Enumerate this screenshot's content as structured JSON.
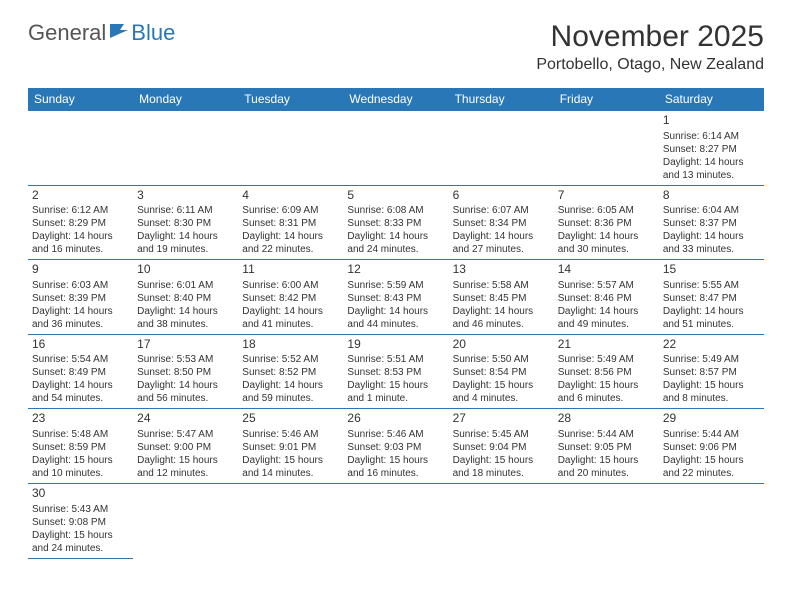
{
  "logo": {
    "general": "General",
    "blue": "Blue"
  },
  "title": "November 2025",
  "location": "Portobello, Otago, New Zealand",
  "colors": {
    "header_bg": "#2a77b8",
    "header_text": "#ffffff",
    "border": "#2a77b8",
    "text": "#333333",
    "logo_gray": "#555555",
    "logo_blue": "#2a77b8"
  },
  "day_headers": [
    "Sunday",
    "Monday",
    "Tuesday",
    "Wednesday",
    "Thursday",
    "Friday",
    "Saturday"
  ],
  "weeks": [
    [
      null,
      null,
      null,
      null,
      null,
      null,
      {
        "n": "1",
        "sr": "Sunrise: 6:14 AM",
        "ss": "Sunset: 8:27 PM",
        "d1": "Daylight: 14 hours",
        "d2": "and 13 minutes."
      }
    ],
    [
      {
        "n": "2",
        "sr": "Sunrise: 6:12 AM",
        "ss": "Sunset: 8:29 PM",
        "d1": "Daylight: 14 hours",
        "d2": "and 16 minutes."
      },
      {
        "n": "3",
        "sr": "Sunrise: 6:11 AM",
        "ss": "Sunset: 8:30 PM",
        "d1": "Daylight: 14 hours",
        "d2": "and 19 minutes."
      },
      {
        "n": "4",
        "sr": "Sunrise: 6:09 AM",
        "ss": "Sunset: 8:31 PM",
        "d1": "Daylight: 14 hours",
        "d2": "and 22 minutes."
      },
      {
        "n": "5",
        "sr": "Sunrise: 6:08 AM",
        "ss": "Sunset: 8:33 PM",
        "d1": "Daylight: 14 hours",
        "d2": "and 24 minutes."
      },
      {
        "n": "6",
        "sr": "Sunrise: 6:07 AM",
        "ss": "Sunset: 8:34 PM",
        "d1": "Daylight: 14 hours",
        "d2": "and 27 minutes."
      },
      {
        "n": "7",
        "sr": "Sunrise: 6:05 AM",
        "ss": "Sunset: 8:36 PM",
        "d1": "Daylight: 14 hours",
        "d2": "and 30 minutes."
      },
      {
        "n": "8",
        "sr": "Sunrise: 6:04 AM",
        "ss": "Sunset: 8:37 PM",
        "d1": "Daylight: 14 hours",
        "d2": "and 33 minutes."
      }
    ],
    [
      {
        "n": "9",
        "sr": "Sunrise: 6:03 AM",
        "ss": "Sunset: 8:39 PM",
        "d1": "Daylight: 14 hours",
        "d2": "and 36 minutes."
      },
      {
        "n": "10",
        "sr": "Sunrise: 6:01 AM",
        "ss": "Sunset: 8:40 PM",
        "d1": "Daylight: 14 hours",
        "d2": "and 38 minutes."
      },
      {
        "n": "11",
        "sr": "Sunrise: 6:00 AM",
        "ss": "Sunset: 8:42 PM",
        "d1": "Daylight: 14 hours",
        "d2": "and 41 minutes."
      },
      {
        "n": "12",
        "sr": "Sunrise: 5:59 AM",
        "ss": "Sunset: 8:43 PM",
        "d1": "Daylight: 14 hours",
        "d2": "and 44 minutes."
      },
      {
        "n": "13",
        "sr": "Sunrise: 5:58 AM",
        "ss": "Sunset: 8:45 PM",
        "d1": "Daylight: 14 hours",
        "d2": "and 46 minutes."
      },
      {
        "n": "14",
        "sr": "Sunrise: 5:57 AM",
        "ss": "Sunset: 8:46 PM",
        "d1": "Daylight: 14 hours",
        "d2": "and 49 minutes."
      },
      {
        "n": "15",
        "sr": "Sunrise: 5:55 AM",
        "ss": "Sunset: 8:47 PM",
        "d1": "Daylight: 14 hours",
        "d2": "and 51 minutes."
      }
    ],
    [
      {
        "n": "16",
        "sr": "Sunrise: 5:54 AM",
        "ss": "Sunset: 8:49 PM",
        "d1": "Daylight: 14 hours",
        "d2": "and 54 minutes."
      },
      {
        "n": "17",
        "sr": "Sunrise: 5:53 AM",
        "ss": "Sunset: 8:50 PM",
        "d1": "Daylight: 14 hours",
        "d2": "and 56 minutes."
      },
      {
        "n": "18",
        "sr": "Sunrise: 5:52 AM",
        "ss": "Sunset: 8:52 PM",
        "d1": "Daylight: 14 hours",
        "d2": "and 59 minutes."
      },
      {
        "n": "19",
        "sr": "Sunrise: 5:51 AM",
        "ss": "Sunset: 8:53 PM",
        "d1": "Daylight: 15 hours",
        "d2": "and 1 minute."
      },
      {
        "n": "20",
        "sr": "Sunrise: 5:50 AM",
        "ss": "Sunset: 8:54 PM",
        "d1": "Daylight: 15 hours",
        "d2": "and 4 minutes."
      },
      {
        "n": "21",
        "sr": "Sunrise: 5:49 AM",
        "ss": "Sunset: 8:56 PM",
        "d1": "Daylight: 15 hours",
        "d2": "and 6 minutes."
      },
      {
        "n": "22",
        "sr": "Sunrise: 5:49 AM",
        "ss": "Sunset: 8:57 PM",
        "d1": "Daylight: 15 hours",
        "d2": "and 8 minutes."
      }
    ],
    [
      {
        "n": "23",
        "sr": "Sunrise: 5:48 AM",
        "ss": "Sunset: 8:59 PM",
        "d1": "Daylight: 15 hours",
        "d2": "and 10 minutes."
      },
      {
        "n": "24",
        "sr": "Sunrise: 5:47 AM",
        "ss": "Sunset: 9:00 PM",
        "d1": "Daylight: 15 hours",
        "d2": "and 12 minutes."
      },
      {
        "n": "25",
        "sr": "Sunrise: 5:46 AM",
        "ss": "Sunset: 9:01 PM",
        "d1": "Daylight: 15 hours",
        "d2": "and 14 minutes."
      },
      {
        "n": "26",
        "sr": "Sunrise: 5:46 AM",
        "ss": "Sunset: 9:03 PM",
        "d1": "Daylight: 15 hours",
        "d2": "and 16 minutes."
      },
      {
        "n": "27",
        "sr": "Sunrise: 5:45 AM",
        "ss": "Sunset: 9:04 PM",
        "d1": "Daylight: 15 hours",
        "d2": "and 18 minutes."
      },
      {
        "n": "28",
        "sr": "Sunrise: 5:44 AM",
        "ss": "Sunset: 9:05 PM",
        "d1": "Daylight: 15 hours",
        "d2": "and 20 minutes."
      },
      {
        "n": "29",
        "sr": "Sunrise: 5:44 AM",
        "ss": "Sunset: 9:06 PM",
        "d1": "Daylight: 15 hours",
        "d2": "and 22 minutes."
      }
    ],
    [
      {
        "n": "30",
        "sr": "Sunrise: 5:43 AM",
        "ss": "Sunset: 9:08 PM",
        "d1": "Daylight: 15 hours",
        "d2": "and 24 minutes."
      },
      null,
      null,
      null,
      null,
      null,
      null
    ]
  ]
}
